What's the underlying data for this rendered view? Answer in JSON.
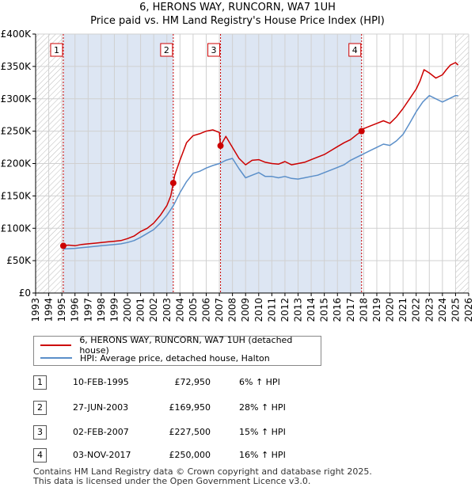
{
  "title_line1": "6, HERONS WAY, RUNCORN, WA7 1UH",
  "title_line2": "Price paid vs. HM Land Registry's House Price Index (HPI)",
  "legend": {
    "property": "6, HERONS WAY, RUNCORN, WA7 1UH (detached house)",
    "hpi": "HPI: Average price, detached house, Halton"
  },
  "colors": {
    "property": "#cc0000",
    "hpi": "#5b8fc9",
    "shade": "#dde6f3",
    "grid": "#d0d0d0"
  },
  "transactions": [
    {
      "num": "1",
      "date": "10-FEB-1995",
      "price": "£72,950",
      "hpi": "6% ↑ HPI"
    },
    {
      "num": "2",
      "date": "27-JUN-2003",
      "price": "£169,950",
      "hpi": "28% ↑ HPI"
    },
    {
      "num": "3",
      "date": "02-FEB-2007",
      "price": "£227,500",
      "hpi": "15% ↑ HPI"
    },
    {
      "num": "4",
      "date": "03-NOV-2017",
      "price": "£250,000",
      "hpi": "16% ↑ HPI"
    }
  ],
  "footer": {
    "line1": "Contains HM Land Registry data © Crown copyright and database right 2025.",
    "line2": "This data is licensed under the Open Government Licence v3.0."
  },
  "chart_data": {
    "type": "line",
    "title": "6, HERONS WAY, RUNCORN, WA7 1UH — Price paid vs. HM Land Registry's House Price Index (HPI)",
    "xlim": [
      1993,
      2026
    ],
    "ylim": [
      0,
      400000
    ],
    "x_ticks": [
      1993,
      1994,
      1995,
      1996,
      1997,
      1998,
      1999,
      2000,
      2001,
      2002,
      2003,
      2004,
      2005,
      2006,
      2007,
      2008,
      2009,
      2010,
      2011,
      2012,
      2013,
      2014,
      2015,
      2016,
      2017,
      2018,
      2019,
      2020,
      2021,
      2022,
      2023,
      2024,
      2025,
      2026
    ],
    "y_ticks": [
      {
        "value": 0,
        "label": "£0"
      },
      {
        "value": 50000,
        "label": "£50K"
      },
      {
        "value": 100000,
        "label": "£100K"
      },
      {
        "value": 150000,
        "label": "£150K"
      },
      {
        "value": 200000,
        "label": "£200K"
      },
      {
        "value": 250000,
        "label": "£250K"
      },
      {
        "value": 300000,
        "label": "£300K"
      },
      {
        "value": 350000,
        "label": "£350K"
      },
      {
        "value": 400000,
        "label": "£400K"
      }
    ],
    "grid": true,
    "hatched_regions": [
      [
        1993,
        1995.1
      ],
      [
        2025.0,
        2026
      ]
    ],
    "shaded_regions": [
      [
        1995.11,
        2003.49
      ],
      [
        2007.09,
        2017.84
      ]
    ],
    "series": [
      {
        "name": "6, HERONS WAY, RUNCORN, WA7 1UH (detached house)",
        "color": "#cc0000",
        "x": [
          1995.1,
          1995.5,
          1996,
          1996.5,
          1997,
          1997.5,
          1998,
          1998.5,
          1999,
          1999.5,
          2000,
          2000.5,
          2001,
          2001.5,
          2002,
          2002.5,
          2003,
          2003.3,
          2003.49,
          2003.6,
          2004,
          2004.5,
          2005,
          2005.5,
          2006,
          2006.5,
          2007,
          2007.09,
          2007.5,
          2008,
          2008.5,
          2009,
          2009.5,
          2010,
          2010.5,
          2011,
          2011.5,
          2012,
          2012.5,
          2013,
          2013.5,
          2014,
          2014.5,
          2015,
          2015.5,
          2016,
          2016.5,
          2017,
          2017.5,
          2017.84,
          2018,
          2018.5,
          2019,
          2019.5,
          2020,
          2020.5,
          2021,
          2021.5,
          2022,
          2022.3,
          2022.6,
          2023,
          2023.5,
          2024,
          2024.3,
          2024.6,
          2025,
          2025.2
        ],
        "y": [
          72950,
          74000,
          73000,
          75000,
          76000,
          77000,
          78000,
          79000,
          80000,
          81000,
          84000,
          88000,
          95000,
          100000,
          108000,
          120000,
          135000,
          150000,
          169950,
          182000,
          205000,
          232000,
          243000,
          246000,
          250000,
          252000,
          248000,
          227500,
          242000,
          225000,
          208000,
          198000,
          205000,
          206000,
          202000,
          200000,
          199000,
          203000,
          198000,
          200000,
          202000,
          206000,
          210000,
          214000,
          220000,
          226000,
          232000,
          237000,
          245000,
          250000,
          254000,
          258000,
          262000,
          266000,
          262000,
          272000,
          285000,
          300000,
          315000,
          328000,
          345000,
          340000,
          332000,
          337000,
          345000,
          352000,
          356000,
          352000
        ]
      },
      {
        "name": "HPI: Average price, detached house, Halton",
        "color": "#5b8fc9",
        "x": [
          1995.1,
          1995.5,
          1996,
          1996.5,
          1997,
          1997.5,
          1998,
          1998.5,
          1999,
          1999.5,
          2000,
          2000.5,
          2001,
          2001.5,
          2002,
          2002.5,
          2003,
          2003.5,
          2004,
          2004.5,
          2005,
          2005.5,
          2006,
          2006.5,
          2007,
          2007.5,
          2008,
          2008.5,
          2009,
          2009.5,
          2010,
          2010.5,
          2011,
          2011.5,
          2012,
          2012.5,
          2013,
          2013.5,
          2014,
          2014.5,
          2015,
          2015.5,
          2016,
          2016.5,
          2017,
          2017.5,
          2018,
          2018.5,
          2019,
          2019.5,
          2020,
          2020.5,
          2021,
          2021.5,
          2022,
          2022.5,
          2023,
          2023.5,
          2024,
          2024.5,
          2025,
          2025.2
        ],
        "y": [
          68000,
          68500,
          69000,
          70000,
          71000,
          72000,
          73000,
          74000,
          75000,
          76000,
          78000,
          81000,
          86000,
          92000,
          98000,
          108000,
          120000,
          135000,
          155000,
          172000,
          185000,
          188000,
          193000,
          197000,
          200000,
          205000,
          208000,
          192000,
          178000,
          182000,
          186000,
          180000,
          180000,
          178000,
          180000,
          177000,
          176000,
          178000,
          180000,
          182000,
          186000,
          190000,
          194000,
          198000,
          205000,
          210000,
          215000,
          220000,
          225000,
          230000,
          228000,
          235000,
          245000,
          262000,
          280000,
          295000,
          305000,
          300000,
          295000,
          300000,
          305000,
          305000
        ]
      }
    ],
    "markers": [
      {
        "label": "1",
        "x": 1995.11,
        "y": 72950
      },
      {
        "label": "2",
        "x": 2003.49,
        "y": 169950
      },
      {
        "label": "3",
        "x": 2007.09,
        "y": 227500
      },
      {
        "label": "4",
        "x": 2017.84,
        "y": 250000
      }
    ]
  }
}
